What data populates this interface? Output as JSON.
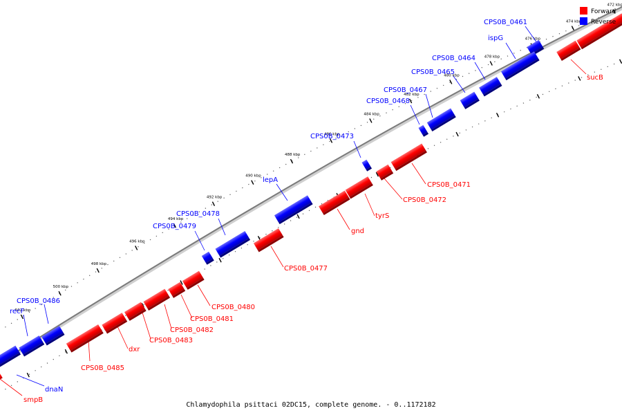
{
  "caption": "Chlamydophila psittaci 02DC15, complete genome. - 0..1172182",
  "legend": [
    {
      "label": "Forward",
      "color": "#ff0000"
    },
    {
      "label": "Reverse",
      "color": "#0000ff"
    }
  ],
  "colors": {
    "forward": "#ff0000",
    "reverse": "#0000ff",
    "backbone": "#888888"
  },
  "scale_ticks": [
    "472 kbp",
    "474 kbp",
    "476 kbp",
    "478 kbp",
    "480 kbp",
    "482 kbp",
    "484 kbp",
    "486 kbp",
    "488 kbp",
    "490 kbp",
    "492 kbp",
    "494 kbp",
    "496 kbp",
    "498 kbp",
    "500 kbp",
    "502 kbp"
  ],
  "genes": {
    "reverse": [
      {
        "name": "CPS0B_0461"
      },
      {
        "name": "ispG"
      },
      {
        "name": "CPS0B_0464"
      },
      {
        "name": "CPS0B_0465"
      },
      {
        "name": "CPS0B_0467"
      },
      {
        "name": "CPS0B_0468"
      },
      {
        "name": "CPS0B_0473"
      },
      {
        "name": "lepA"
      },
      {
        "name": "CPS0B_0478"
      },
      {
        "name": "CPS0B_0479"
      },
      {
        "name": "CPS0B_0486"
      },
      {
        "name": "recF"
      },
      {
        "name": "dnaN"
      }
    ],
    "forward": [
      {
        "name": "sucB"
      },
      {
        "name": "CPS0B_0471"
      },
      {
        "name": "CPS0B_0472"
      },
      {
        "name": "tyrS"
      },
      {
        "name": "gnd"
      },
      {
        "name": "CPS0B_0477"
      },
      {
        "name": "CPS0B_0480"
      },
      {
        "name": "CPS0B_0481"
      },
      {
        "name": "CPS0B_0482"
      },
      {
        "name": "CPS0B_0483"
      },
      {
        "name": "dxr"
      },
      {
        "name": "CPS0B_0485"
      },
      {
        "name": "smpB"
      }
    ]
  }
}
